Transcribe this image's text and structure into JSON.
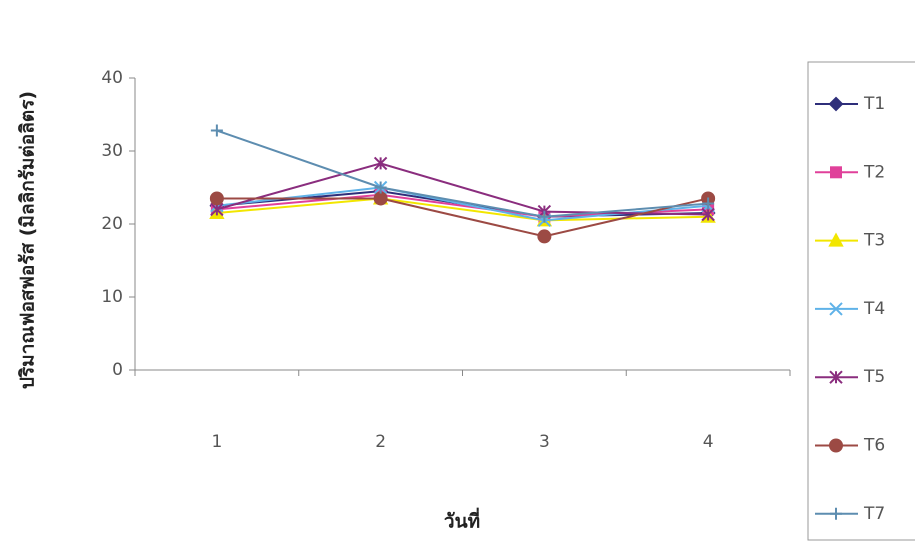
{
  "chart_data": {
    "type": "line",
    "y_label": "ปริมาณฟอสฟอรัส (มิลลิกรัมต่อลิตร)",
    "x_label": "วันที่",
    "categories": [
      "1",
      "2",
      "3",
      "4"
    ],
    "ylim": [
      0,
      40
    ],
    "yticks": [
      0,
      10,
      20,
      30,
      40
    ],
    "grid": false,
    "legend": "right",
    "series": [
      {
        "name": "T1",
        "color": "#2e2e7a",
        "marker": "diamond",
        "values": [
          22.5,
          24.5,
          21,
          21.5
        ]
      },
      {
        "name": "T2",
        "color": "#e0409a",
        "marker": "square",
        "values": [
          22,
          24,
          21,
          22
        ]
      },
      {
        "name": "T3",
        "color": "#f2e600",
        "marker": "triangle",
        "values": [
          21.5,
          23.5,
          20.5,
          21
        ]
      },
      {
        "name": "T4",
        "color": "#5fb2e8",
        "marker": "x",
        "values": [
          22.5,
          25,
          20.5,
          22.5
        ]
      },
      {
        "name": "T5",
        "color": "#8a2d7e",
        "marker": "star",
        "values": [
          22,
          28.3,
          21.7,
          21.3
        ]
      },
      {
        "name": "T6",
        "color": "#9c4a44",
        "marker": "circle",
        "values": [
          23.5,
          23.5,
          18.3,
          23.5
        ]
      },
      {
        "name": "T7",
        "color": "#5d8db0",
        "marker": "plus",
        "values": [
          32.8,
          25,
          21,
          22.8
        ]
      }
    ]
  }
}
